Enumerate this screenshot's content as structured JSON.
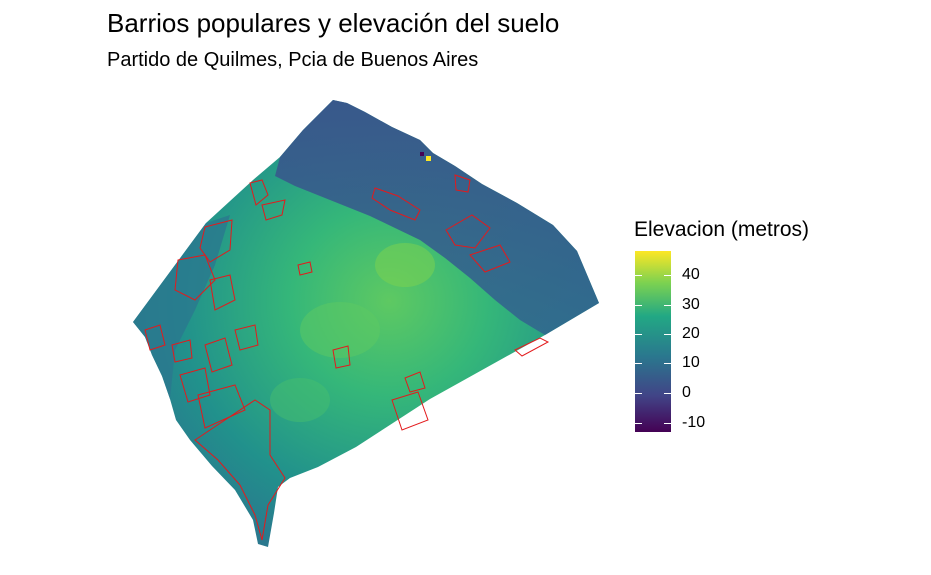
{
  "title": "Barrios populares y elevación del suelo",
  "subtitle": "Partido de Quilmes, Pcia de Buenos Aires",
  "legend": {
    "title": "Elevacion (metros)",
    "ticks": [
      "40",
      "30",
      "20",
      "10",
      "0",
      "-10"
    ],
    "colors": [
      "#fde725",
      "#7ad151",
      "#22a884",
      "#2a788e",
      "#414487",
      "#440154"
    ]
  },
  "map": {
    "raster_variable": "elevation",
    "overlay_color": "#e31a1c",
    "overlay_feature": "barrios populares outlines"
  }
}
